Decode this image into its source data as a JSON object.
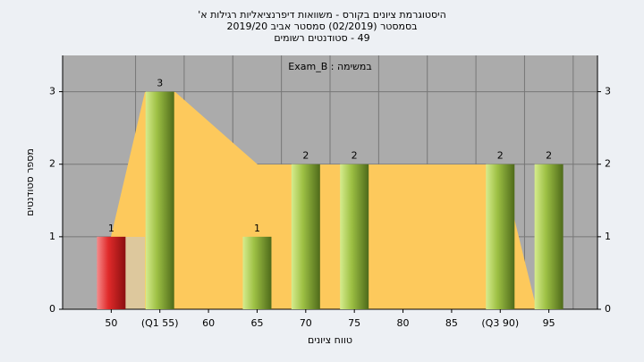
{
  "chart_data": {
    "type": "bar",
    "title": "היסטוגרמת ציונים בקורס - משוואות דיפרנציאליות רגילות א'",
    "subtitle": "בסמסטר  (02/2019)  סמסטר אביב 2019/20",
    "caption": "49 - סטודנטים רשומים",
    "annotation": "במשימה : Exam_B",
    "x_label": "טווח ציונים",
    "y_label": "מספר סטודנטים",
    "categories": [
      "50",
      "(Q1 55)",
      "60",
      "65",
      "70",
      "75",
      "80",
      "85",
      "(Q3 90)",
      "95"
    ],
    "values": [
      1,
      3,
      0,
      1,
      2,
      2,
      0,
      0,
      2,
      2
    ],
    "colors": [
      "#d8262c",
      "#8fb13a",
      "#8fb13a",
      "#8fb13a",
      "#8fb13a",
      "#8fb13a",
      "#8fb13a",
      "#8fb13a",
      "#8fb13a",
      "#8fb13a"
    ],
    "ylim": [
      0,
      3.5
    ],
    "yticks": [
      0,
      1,
      2,
      3
    ],
    "grid": true
  }
}
